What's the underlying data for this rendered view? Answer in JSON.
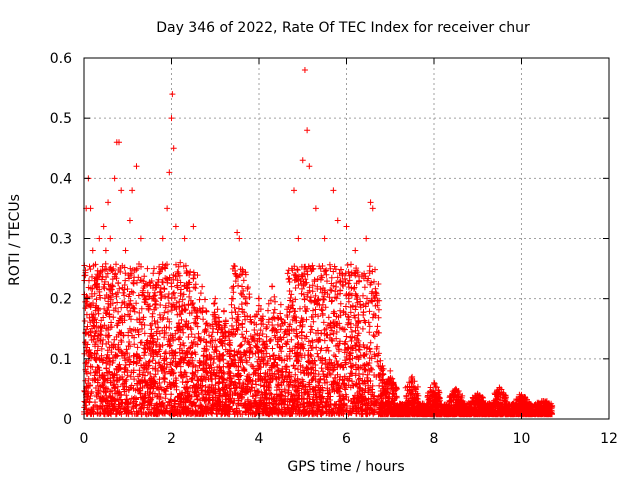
{
  "chart_data": {
    "type": "scatter",
    "title": "Day 346 of 2022, Rate Of TEC Index for receiver chur",
    "xlabel": "GPS time / hours",
    "ylabel": "ROTI / TECUs",
    "xlim": [
      0,
      12
    ],
    "ylim": [
      0,
      0.6
    ],
    "xticks": [
      0,
      2,
      4,
      6,
      8,
      10,
      12
    ],
    "yticks": [
      0,
      0.1,
      0.2,
      0.3,
      0.4,
      0.5,
      0.6
    ],
    "xtick_labels": [
      "0",
      "2",
      "4",
      "6",
      "8",
      "10",
      "12"
    ],
    "ytick_labels": [
      "0",
      "0.1",
      "0.2",
      "0.3",
      "0.4",
      "0.5",
      "0.6"
    ],
    "grid": true,
    "marker": "+",
    "color": "#ff0000",
    "data_x_range": [
      0,
      10.7
    ],
    "series": [
      {
        "name": "ROTI",
        "points": [
          [
            0.05,
            0.35
          ],
          [
            0.1,
            0.4
          ],
          [
            0.15,
            0.35
          ],
          [
            0.2,
            0.28
          ],
          [
            0.3,
            0.22
          ],
          [
            0.35,
            0.3
          ],
          [
            0.45,
            0.32
          ],
          [
            0.5,
            0.28
          ],
          [
            0.55,
            0.36
          ],
          [
            0.6,
            0.3
          ],
          [
            0.7,
            0.4
          ],
          [
            0.75,
            0.46
          ],
          [
            0.8,
            0.46
          ],
          [
            0.85,
            0.38
          ],
          [
            0.95,
            0.28
          ],
          [
            1.05,
            0.33
          ],
          [
            1.1,
            0.38
          ],
          [
            1.2,
            0.42
          ],
          [
            1.3,
            0.3
          ],
          [
            1.45,
            0.25
          ],
          [
            1.6,
            0.25
          ],
          [
            1.8,
            0.3
          ],
          [
            1.9,
            0.35
          ],
          [
            1.95,
            0.41
          ],
          [
            2.0,
            0.5
          ],
          [
            2.02,
            0.54
          ],
          [
            2.05,
            0.45
          ],
          [
            2.1,
            0.32
          ],
          [
            2.2,
            0.26
          ],
          [
            2.3,
            0.3
          ],
          [
            2.5,
            0.32
          ],
          [
            2.7,
            0.22
          ],
          [
            3.0,
            0.2
          ],
          [
            3.2,
            0.18
          ],
          [
            3.5,
            0.31
          ],
          [
            3.55,
            0.3
          ],
          [
            3.7,
            0.24
          ],
          [
            4.0,
            0.2
          ],
          [
            4.3,
            0.22
          ],
          [
            4.5,
            0.19
          ],
          [
            4.75,
            0.25
          ],
          [
            4.8,
            0.38
          ],
          [
            4.9,
            0.3
          ],
          [
            5.0,
            0.43
          ],
          [
            5.05,
            0.58
          ],
          [
            5.1,
            0.48
          ],
          [
            5.15,
            0.42
          ],
          [
            5.3,
            0.35
          ],
          [
            5.5,
            0.3
          ],
          [
            5.7,
            0.38
          ],
          [
            5.8,
            0.33
          ],
          [
            6.0,
            0.32
          ],
          [
            6.2,
            0.28
          ],
          [
            6.45,
            0.3
          ],
          [
            6.55,
            0.36
          ],
          [
            6.6,
            0.35
          ],
          [
            6.7,
            0.12
          ],
          [
            7.0,
            0.08
          ],
          [
            7.5,
            0.07
          ],
          [
            8.0,
            0.06
          ],
          [
            8.5,
            0.05
          ],
          [
            9.0,
            0.04
          ],
          [
            9.5,
            0.05
          ],
          [
            10.0,
            0.04
          ],
          [
            10.5,
            0.03
          ],
          [
            10.7,
            0.02
          ]
        ]
      }
    ]
  }
}
